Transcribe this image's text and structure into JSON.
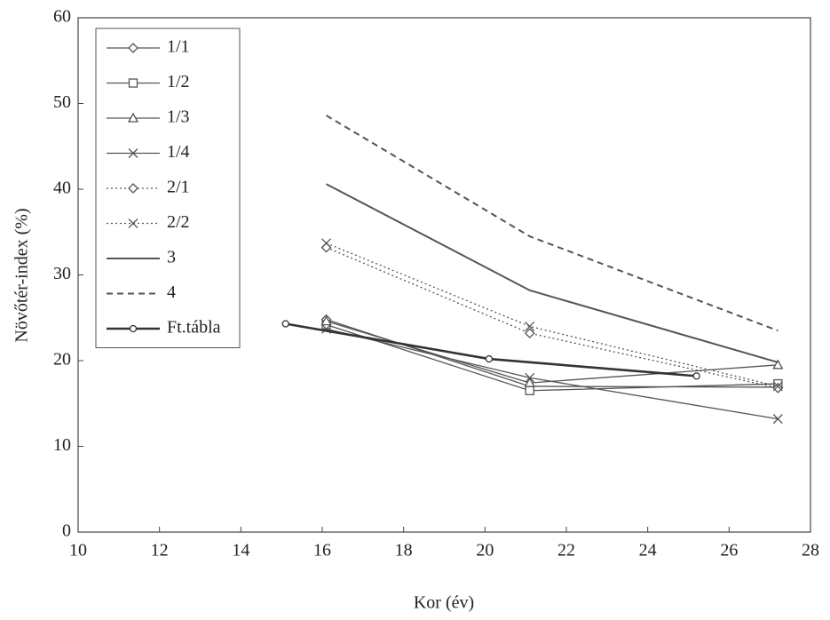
{
  "chart_data": {
    "type": "line",
    "xlabel": "Kor (év)",
    "ylabel": "Növőtér-index (%)",
    "xlim": [
      10,
      28
    ],
    "xticks": [
      10,
      12,
      14,
      16,
      18,
      20,
      22,
      24,
      26,
      28
    ],
    "ylim": [
      0,
      60
    ],
    "yticks": [
      0,
      10,
      20,
      30,
      40,
      50,
      60
    ],
    "legend": "upper left",
    "series": [
      {
        "name": "1/1",
        "color": "#555555",
        "linestyle": "solid",
        "marker": "diamond",
        "width": 1.3,
        "x": [
          16.1,
          21.1,
          27.2
        ],
        "values": [
          24.8,
          17.0,
          16.9
        ]
      },
      {
        "name": "1/2",
        "color": "#555555",
        "linestyle": "solid",
        "marker": "square",
        "width": 1.3,
        "x": [
          16.1,
          21.1,
          27.2
        ],
        "values": [
          24.2,
          16.5,
          17.3
        ]
      },
      {
        "name": "1/3",
        "color": "#555555",
        "linestyle": "solid",
        "marker": "triangle",
        "width": 1.3,
        "x": [
          16.1,
          21.1,
          27.2
        ],
        "values": [
          24.6,
          17.4,
          19.5
        ]
      },
      {
        "name": "1/4",
        "color": "#555555",
        "linestyle": "solid",
        "marker": "x",
        "width": 1.3,
        "x": [
          16.1,
          21.1,
          27.2
        ],
        "values": [
          23.7,
          18.0,
          13.2
        ]
      },
      {
        "name": "2/1",
        "color": "#555555",
        "linestyle": "dotted",
        "marker": "diamond",
        "width": 1.3,
        "x": [
          16.1,
          21.1,
          27.2
        ],
        "values": [
          33.2,
          23.2,
          16.8
        ]
      },
      {
        "name": "2/2",
        "color": "#555555",
        "linestyle": "dotted",
        "marker": "x",
        "width": 1.3,
        "x": [
          16.1,
          21.1,
          27.2
        ],
        "values": [
          33.7,
          24.0,
          17.0
        ]
      },
      {
        "name": "3",
        "color": "#555555",
        "linestyle": "solid",
        "marker": "none",
        "width": 2,
        "x": [
          16.1,
          21.1,
          27.2
        ],
        "values": [
          40.6,
          28.2,
          19.8
        ]
      },
      {
        "name": "4",
        "color": "#555555",
        "linestyle": "dashed",
        "marker": "none",
        "width": 2,
        "x": [
          16.1,
          21.1,
          27.2
        ],
        "values": [
          48.6,
          34.5,
          23.5
        ]
      },
      {
        "name": "Ft.tábla",
        "color": "#333333",
        "linestyle": "solid",
        "marker": "circle",
        "width": 2.6,
        "x": [
          15.1,
          20.1,
          25.2
        ],
        "values": [
          24.3,
          20.2,
          18.2
        ]
      }
    ]
  }
}
